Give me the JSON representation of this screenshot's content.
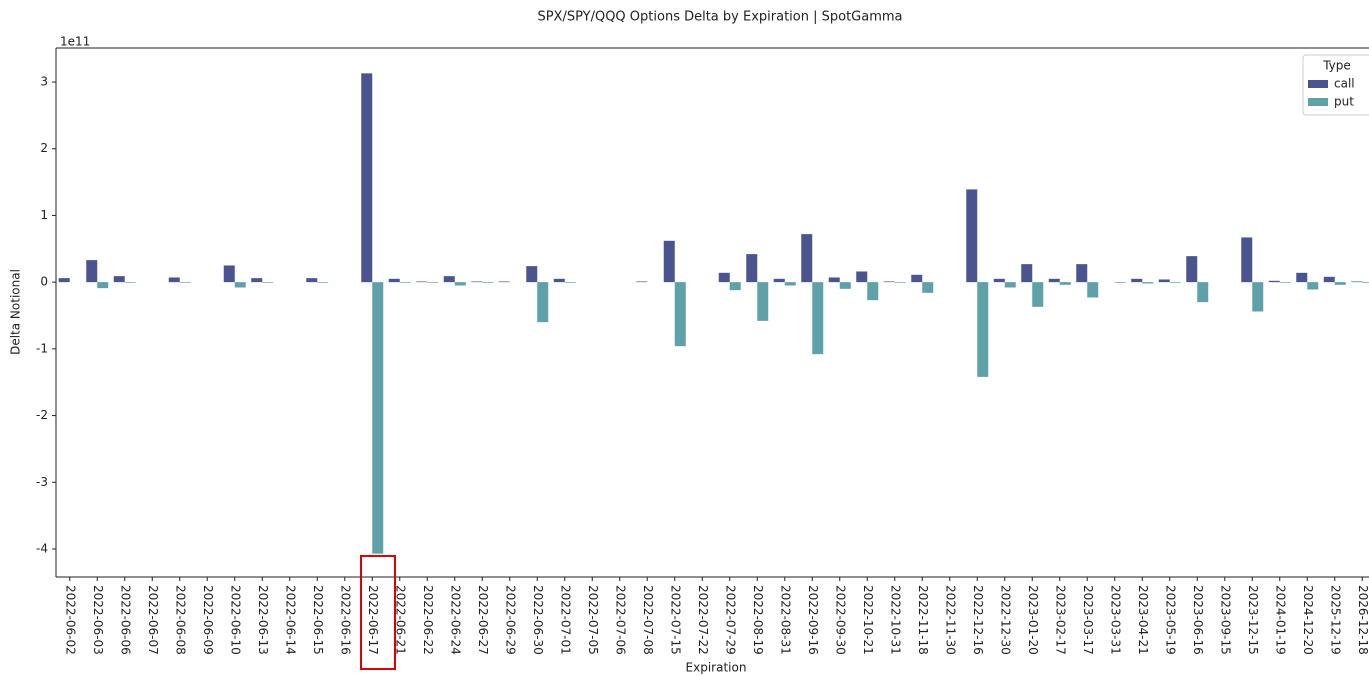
{
  "chart_data": {
    "type": "bar",
    "title": "SPX/SPY/QQQ Options Delta by Expiration | SpotGamma",
    "xlabel": "Expiration",
    "ylabel": "Delta Notional",
    "y_offset_label": "1e11",
    "legend_title": "Type",
    "legend": "upper right",
    "categories": [
      "2022-06-02",
      "2022-06-03",
      "2022-06-06",
      "2022-06-07",
      "2022-06-08",
      "2022-06-09",
      "2022-06-10",
      "2022-06-13",
      "2022-06-14",
      "2022-06-15",
      "2022-06-16",
      "2022-06-17",
      "2022-06-21",
      "2022-06-22",
      "2022-06-24",
      "2022-06-27",
      "2022-06-29",
      "2022-06-30",
      "2022-07-01",
      "2022-07-05",
      "2022-07-06",
      "2022-07-08",
      "2022-07-15",
      "2022-07-22",
      "2022-07-29",
      "2022-08-19",
      "2022-08-31",
      "2022-09-16",
      "2022-09-30",
      "2022-10-21",
      "2022-10-31",
      "2022-11-18",
      "2022-11-30",
      "2022-12-16",
      "2022-12-30",
      "2023-01-20",
      "2023-02-17",
      "2023-03-17",
      "2023-03-31",
      "2023-04-21",
      "2023-05-19",
      "2023-06-16",
      "2023-09-15",
      "2023-12-15",
      "2024-01-19",
      "2024-12-20",
      "2025-12-19",
      "2026-12-18"
    ],
    "series": [
      {
        "name": "call",
        "color": "#4a5590",
        "values": [
          0.06,
          0.33,
          0.09,
          0,
          0.07,
          0,
          0.25,
          0.06,
          0,
          0.06,
          0,
          3.13,
          0.05,
          0.01,
          0.09,
          0.01,
          0.01,
          0.24,
          0.05,
          0,
          0,
          0.01,
          0.62,
          0,
          0.14,
          0.42,
          0.05,
          0.72,
          0.07,
          0.16,
          0.01,
          0.11,
          0,
          1.39,
          0.05,
          0.27,
          0.05,
          0.27,
          0,
          0.05,
          0.04,
          0.39,
          0,
          0.67,
          0.02,
          0.14,
          0.08,
          0.01
        ]
      },
      {
        "name": "put",
        "color": "#5fa1a8",
        "values": [
          0,
          -0.09,
          -0.01,
          0,
          -0.01,
          0,
          -0.08,
          -0.01,
          0,
          -0.01,
          0,
          -4.07,
          -0.01,
          -0.01,
          -0.05,
          -0.01,
          0,
          -0.6,
          -0.01,
          0,
          0,
          0,
          -0.96,
          0,
          -0.12,
          -0.58,
          -0.05,
          -1.08,
          -0.1,
          -0.27,
          -0.01,
          -0.16,
          0,
          -1.42,
          -0.08,
          -0.37,
          -0.04,
          -0.23,
          -0.01,
          -0.02,
          -0.01,
          -0.3,
          0,
          -0.44,
          -0.01,
          -0.11,
          -0.04,
          -0.01
        ]
      }
    ],
    "ylim": [
      -4.42,
      3.51
    ],
    "yticks": [
      -4,
      -3,
      -2,
      -1,
      0,
      1,
      2,
      3
    ]
  }
}
